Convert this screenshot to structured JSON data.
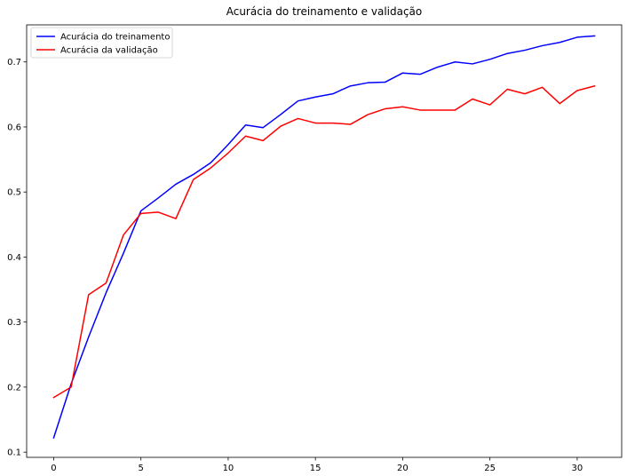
{
  "chart_data": {
    "type": "line",
    "title": "Acurácia do treinamento e validação",
    "xlabel": "",
    "ylabel": "",
    "xlim": [
      -1.55,
      32.55
    ],
    "ylim": [
      0.092,
      0.757
    ],
    "xticks": [
      0,
      5,
      10,
      15,
      20,
      25,
      30
    ],
    "yticks": [
      0.1,
      0.2,
      0.3,
      0.4,
      0.5,
      0.6,
      0.7
    ],
    "grid": false,
    "legend_position": "top-left",
    "x": [
      0,
      1,
      2,
      3,
      4,
      5,
      6,
      7,
      8,
      9,
      10,
      11,
      12,
      13,
      14,
      15,
      16,
      17,
      18,
      19,
      20,
      21,
      22,
      23,
      24,
      25,
      26,
      27,
      28,
      29,
      30,
      31
    ],
    "series": [
      {
        "name": "Acurácia do treinamento",
        "color": "#0000ff",
        "values": [
          0.122,
          0.205,
          0.277,
          0.345,
          0.406,
          0.471,
          0.491,
          0.512,
          0.527,
          0.545,
          0.573,
          0.603,
          0.599,
          0.619,
          0.64,
          0.646,
          0.651,
          0.663,
          0.668,
          0.669,
          0.683,
          0.681,
          0.692,
          0.7,
          0.697,
          0.704,
          0.713,
          0.718,
          0.725,
          0.73,
          0.738,
          0.74
        ]
      },
      {
        "name": "Acurácia da validação",
        "color": "#ff0000",
        "values": [
          0.184,
          0.2,
          0.342,
          0.36,
          0.434,
          0.467,
          0.469,
          0.459,
          0.519,
          0.537,
          0.56,
          0.586,
          0.579,
          0.601,
          0.613,
          0.606,
          0.606,
          0.604,
          0.619,
          0.628,
          0.631,
          0.626,
          0.626,
          0.626,
          0.643,
          0.634,
          0.658,
          0.651,
          0.661,
          0.636,
          0.656,
          0.663
        ]
      }
    ]
  }
}
